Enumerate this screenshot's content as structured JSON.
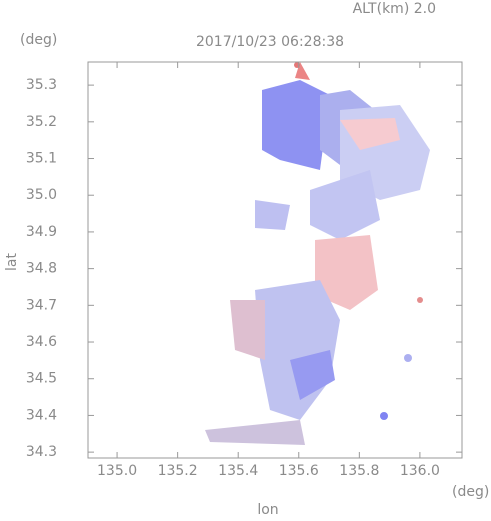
{
  "chart_data": {
    "type": "map",
    "title": "2017/10/23 06:28:38",
    "annotation": "ALT(km) 2.0",
    "y_unit": "(deg)",
    "x_unit": "(deg)",
    "ylabel": "lat",
    "xlabel": "lon",
    "xlim": [
      134.904,
      136.139
    ],
    "ylim": [
      34.284,
      35.363
    ],
    "xticks": [
      {
        "value": 135,
        "label": "135.0"
      },
      135.2,
      135.4,
      135.6,
      135.8,
      {
        "value": 136,
        "label": "136.0"
      }
    ],
    "yticks": [
      34.3,
      34.4,
      34.5,
      34.6,
      34.7,
      34.8,
      34.9,
      {
        "value": 35,
        "label": "35.0"
      },
      35.1,
      35.2,
      35.3
    ]
  }
}
